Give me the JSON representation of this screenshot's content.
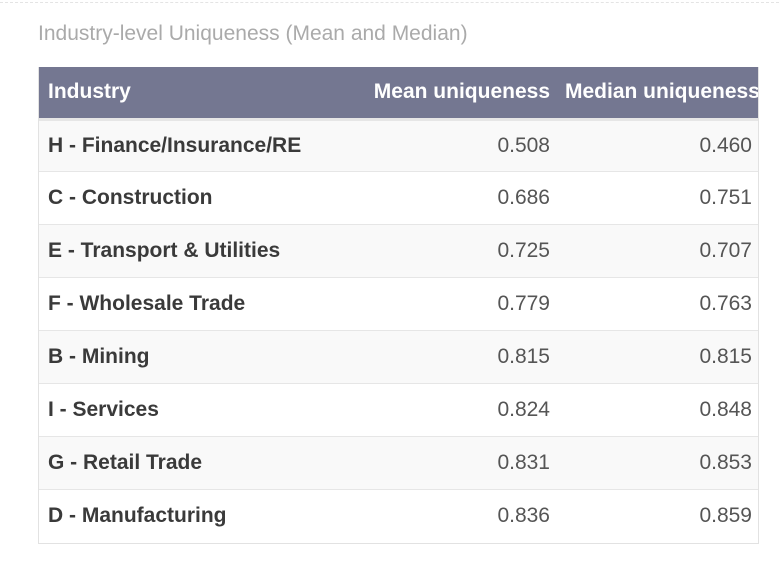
{
  "caption": "Industry-level Uniqueness (Mean and Median)",
  "colors": {
    "header_bg": "#747791",
    "header_text": "#ffffff",
    "caption_text": "#aaaaaa",
    "stripe": "#f9f9f9"
  },
  "table": {
    "headers": {
      "industry": "Industry",
      "mean": "Mean uniqueness",
      "median": "Median uniqueness"
    },
    "rows": [
      {
        "industry": "H - Finance/Insurance/RE",
        "mean": "0.508",
        "median": "0.460"
      },
      {
        "industry": "C - Construction",
        "mean": "0.686",
        "median": "0.751"
      },
      {
        "industry": "E - Transport & Utilities",
        "mean": "0.725",
        "median": "0.707"
      },
      {
        "industry": "F - Wholesale Trade",
        "mean": "0.779",
        "median": "0.763"
      },
      {
        "industry": "B - Mining",
        "mean": "0.815",
        "median": "0.815"
      },
      {
        "industry": "I - Services",
        "mean": "0.824",
        "median": "0.848"
      },
      {
        "industry": "G - Retail Trade",
        "mean": "0.831",
        "median": "0.853"
      },
      {
        "industry": "D - Manufacturing",
        "mean": "0.836",
        "median": "0.859"
      }
    ]
  }
}
